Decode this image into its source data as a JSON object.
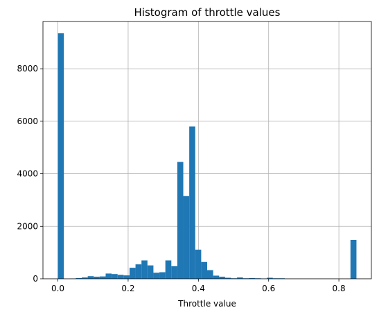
{
  "chart_data": {
    "type": "bar",
    "title": "Histogram of throttle values",
    "xlabel": "Throttle value",
    "ylabel": "",
    "xlim": [
      -0.0425,
      0.8925
    ],
    "ylim": [
      0,
      9800
    ],
    "xticks": [
      0.0,
      0.2,
      0.4,
      0.6,
      0.8
    ],
    "xtick_labels": [
      "0.0",
      "0.2",
      "0.4",
      "0.6",
      "0.8"
    ],
    "yticks": [
      0,
      2000,
      4000,
      6000,
      8000
    ],
    "ytick_labels": [
      "0",
      "2000",
      "4000",
      "6000",
      "8000"
    ],
    "grid": true,
    "bar_color": "#1f77b4",
    "bin_edges": [
      0.0,
      0.017,
      0.034,
      0.051,
      0.068,
      0.085,
      0.102,
      0.119,
      0.136,
      0.153,
      0.17,
      0.187,
      0.204,
      0.221,
      0.238,
      0.255,
      0.272,
      0.289,
      0.306,
      0.323,
      0.34,
      0.357,
      0.374,
      0.391,
      0.408,
      0.425,
      0.442,
      0.459,
      0.476,
      0.493,
      0.51,
      0.527,
      0.544,
      0.561,
      0.578,
      0.595,
      0.612,
      0.629,
      0.646,
      0.663,
      0.68,
      0.697,
      0.714,
      0.731,
      0.748,
      0.765,
      0.782,
      0.799,
      0.816,
      0.833,
      0.85
    ],
    "values": [
      9350,
      0,
      10,
      30,
      50,
      100,
      80,
      90,
      200,
      180,
      150,
      130,
      420,
      550,
      700,
      510,
      230,
      250,
      700,
      480,
      4450,
      3150,
      5800,
      1110,
      640,
      330,
      120,
      80,
      40,
      20,
      50,
      20,
      30,
      20,
      10,
      40,
      20,
      20,
      0,
      0,
      0,
      0,
      0,
      0,
      0,
      0,
      0,
      0,
      0,
      1480
    ]
  }
}
